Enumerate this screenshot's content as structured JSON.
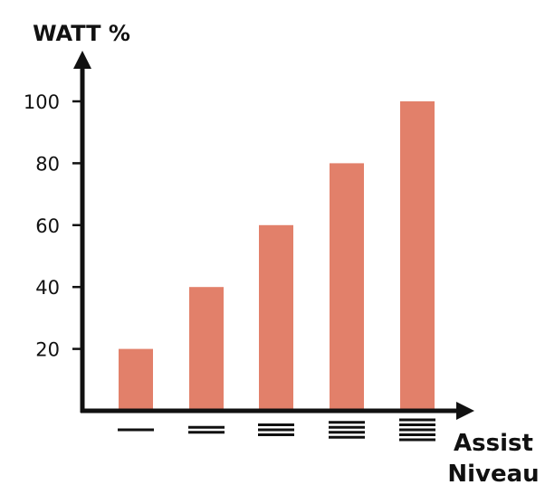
{
  "chart_data": {
    "type": "bar",
    "ylabel": "WATT %",
    "xlabel": "Assist Niveau",
    "xlabel_lines": [
      "Assist",
      "Niveau"
    ],
    "categories": [
      "1 bar",
      "2 bars",
      "3 bars",
      "4 bars",
      "5 bars"
    ],
    "category_icons": [
      1,
      2,
      3,
      4,
      5
    ],
    "values": [
      20,
      40,
      60,
      80,
      100
    ],
    "yticks": [
      20,
      40,
      60,
      80,
      100
    ],
    "ylim": [
      0,
      120
    ],
    "grid": false,
    "legend": "none",
    "bar_color": "#e2806a",
    "axis_color": "#111111"
  }
}
